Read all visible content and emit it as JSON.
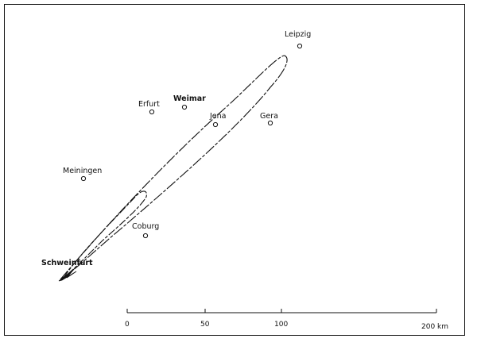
{
  "cities": [
    {
      "name": "Leipzig",
      "bold": false
    },
    {
      "name": "Erfurt",
      "bold": false
    },
    {
      "name": "Weimar",
      "bold": false
    },
    {
      "name": "Jena",
      "bold": false
    },
    {
      "name": "Gera",
      "bold": false
    },
    {
      "name": "Meiningen",
      "bold": false
    },
    {
      "name": "Coburg",
      "bold": false
    },
    {
      "name": "Schweinfurt",
      "bold": true
    }
  ],
  "scale_bar": {
    "ticks": [
      "0",
      "50",
      "100",
      "200 km"
    ]
  }
}
